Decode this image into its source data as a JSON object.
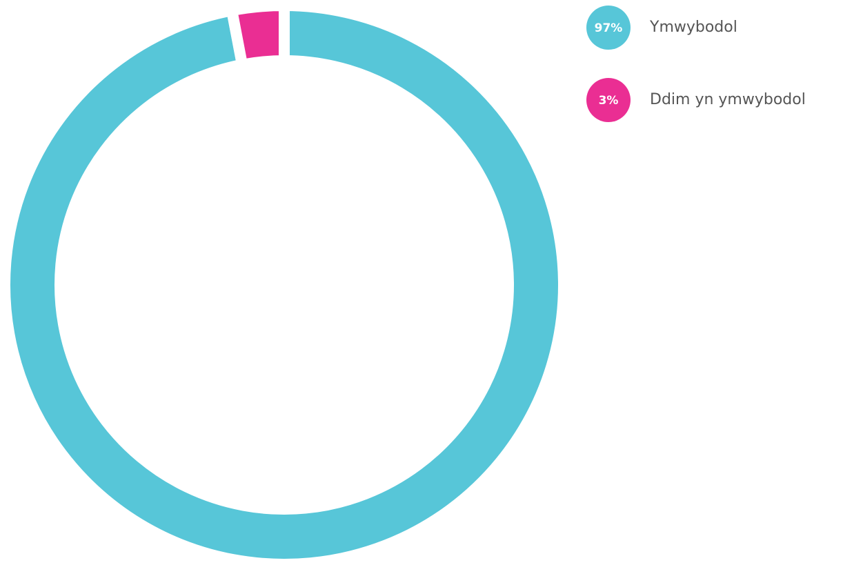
{
  "chart_data": {
    "type": "donut",
    "categories": [
      "Ymwybodol",
      "Ddim yn ymwybodol"
    ],
    "values": [
      97,
      3
    ],
    "value_labels": [
      "97%",
      "3%"
    ],
    "colors": [
      "#57c6d8",
      "#ea2e93"
    ]
  }
}
